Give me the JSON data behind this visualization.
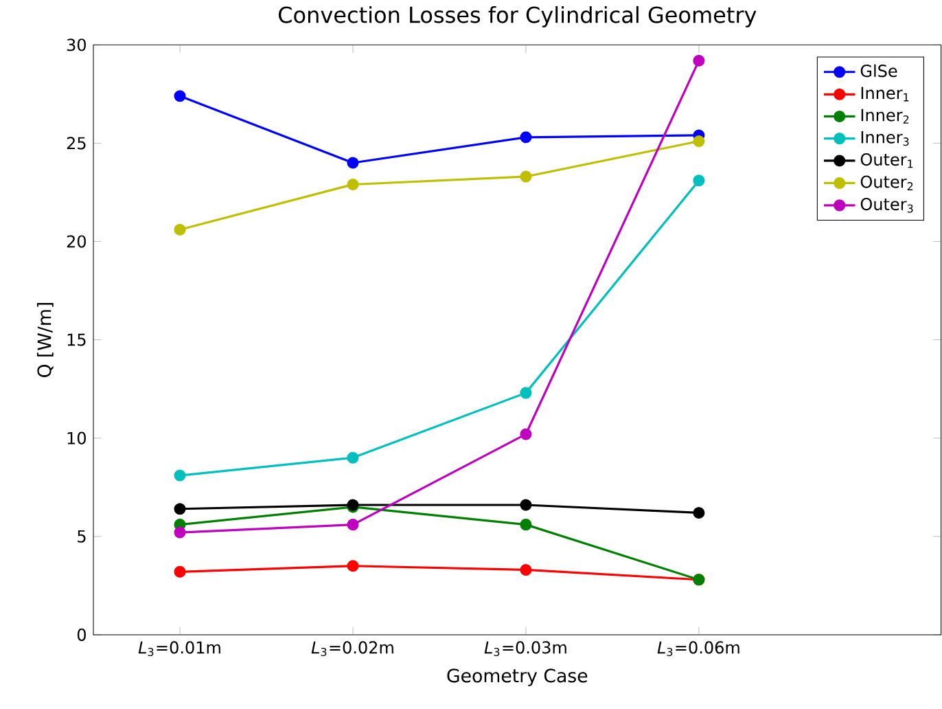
{
  "chart_data": {
    "type": "line",
    "title": "Convection Losses for Cylindrical Geometry",
    "xlabel": "Geometry Case",
    "ylabel": "Q [W/m]",
    "categories": [
      "*L*$_{3}$=0.01m",
      "*L*$_{3}$=0.02m",
      "*L*$_{3}$=0.03m",
      "*L*$_{3}$=0.06m"
    ],
    "series": [
      {
        "name": "GlSe",
        "color": "#0000ff",
        "values": [
          27.4,
          24.0,
          25.3,
          25.4
        ]
      },
      {
        "name": "Inner$_{1}$",
        "color": "#ff0000",
        "values": [
          3.2,
          3.5,
          3.3,
          2.8
        ]
      },
      {
        "name": "Inner$_{2}$",
        "color": "#008000",
        "values": [
          5.6,
          6.5,
          5.6,
          2.8
        ]
      },
      {
        "name": "Inner$_{3}$",
        "color": "#00bfbf",
        "values": [
          8.1,
          9.0,
          12.3,
          23.1
        ]
      },
      {
        "name": "Outer$_{1}$",
        "color": "#000000",
        "values": [
          6.4,
          6.6,
          6.6,
          6.2
        ]
      },
      {
        "name": "Outer$_{2}$",
        "color": "#bfbf00",
        "values": [
          20.6,
          22.9,
          23.3,
          25.1
        ]
      },
      {
        "name": "Outer$_{3}$",
        "color": "#bf00bf",
        "values": [
          5.2,
          5.6,
          10.2,
          29.2
        ]
      }
    ],
    "ylim": [
      0,
      30
    ],
    "yticks": [
      0,
      5,
      10,
      15,
      20,
      25,
      30
    ],
    "grid": false,
    "legend": "top right",
    "marker": "circle",
    "line_style": "solid"
  }
}
